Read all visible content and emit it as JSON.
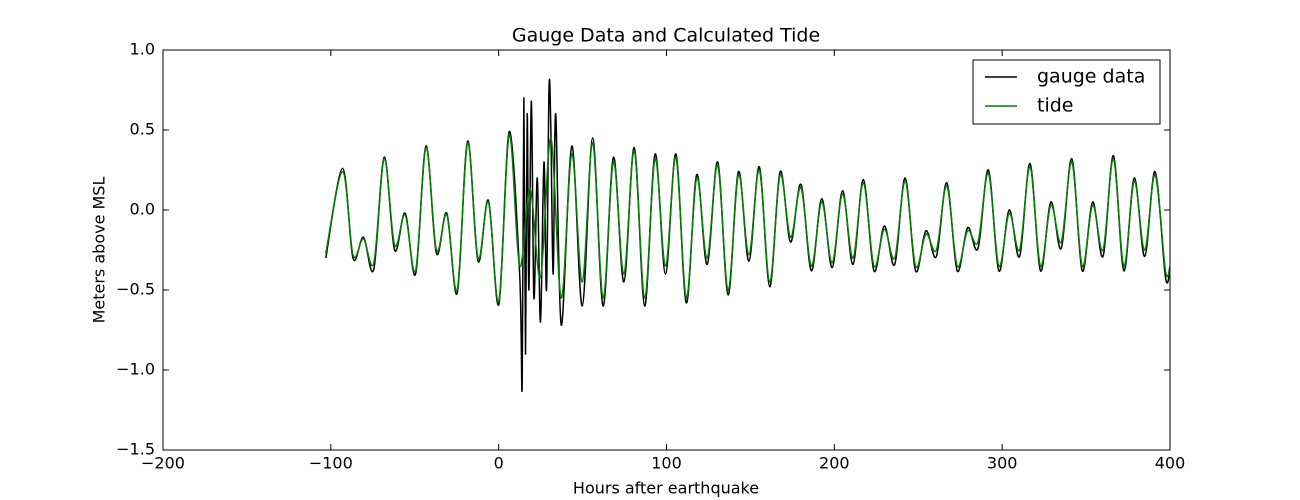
{
  "chart_data": {
    "type": "line",
    "title": "Gauge Data and Calculated Tide",
    "xlabel": "Hours after earthquake",
    "ylabel": "Meters above MSL",
    "xlim": [
      -200,
      400
    ],
    "xticks": [
      {
        "value": -200,
        "label": "−200"
      },
      {
        "value": -100,
        "label": "−100"
      },
      0,
      100,
      200,
      300,
      400
    ],
    "ylim": [
      -1.5,
      1.0
    ],
    "yticks": [
      {
        "value": -1.5,
        "label": "−1.5"
      },
      {
        "value": -1.0,
        "label": "−1.0"
      },
      {
        "value": -0.5,
        "label": "−0.5"
      },
      {
        "value": 0,
        "label": "0.0"
      },
      {
        "value": 0.5,
        "label": "0.5"
      },
      {
        "value": 1.0,
        "label": "1.0"
      }
    ],
    "legend": "upper right",
    "series": [
      {
        "name": "gauge data",
        "color": "#000000",
        "x": [
          -103,
          -93,
          -86.8,
          -80.6,
          -74.4,
          -68.2,
          -62,
          -55.7,
          -49.5,
          -43.3,
          -37.1,
          -30.9,
          -24.7,
          -18.5,
          -12.3,
          -6.1,
          0.1,
          6.3,
          12.5,
          14,
          15,
          16,
          17,
          18,
          19.5,
          21,
          23,
          24.9,
          27,
          28.5,
          30,
          31.1,
          32.5,
          34,
          37.3,
          43.6,
          49.8,
          56,
          62.2,
          68.4,
          74.6,
          80.8,
          87,
          93.2,
          99.4,
          105.6,
          111.8,
          118,
          124.2,
          130.5,
          136.7,
          142.9,
          149.1,
          155.3,
          161.5,
          167.7,
          173.9,
          180.1,
          186.3,
          192.5,
          198.7,
          204.9,
          211.1,
          217.3,
          223.6,
          229.8,
          236,
          242.2,
          248.4,
          254.6,
          260.8,
          267,
          273.2,
          279.4,
          285.6,
          291.8,
          298,
          304.2,
          310.4,
          316.6,
          322.8,
          329,
          335.2,
          341.5,
          347.7,
          353.9,
          360.1,
          366.3,
          372.5,
          378.7,
          384.9,
          391.1,
          397.3,
          400
        ],
        "values": [
          -0.3,
          0.26,
          -0.3,
          -0.17,
          -0.37,
          0.33,
          -0.25,
          -0.02,
          -0.4,
          0.4,
          -0.27,
          -0.02,
          -0.52,
          0.43,
          -0.32,
          0.06,
          -0.59,
          0.49,
          -0.4,
          -1.1,
          0.7,
          -0.9,
          0.6,
          -0.5,
          0.68,
          -0.55,
          0.2,
          -0.7,
          0.3,
          -0.5,
          0.76,
          0.5,
          -0.4,
          0.6,
          -0.72,
          0.4,
          -0.6,
          0.45,
          -0.6,
          0.33,
          -0.45,
          0.39,
          -0.6,
          0.35,
          -0.4,
          0.35,
          -0.58,
          0.22,
          -0.34,
          0.3,
          -0.53,
          0.24,
          -0.32,
          0.27,
          -0.48,
          0.24,
          -0.2,
          0.16,
          -0.38,
          0.07,
          -0.36,
          0.12,
          -0.34,
          0.19,
          -0.38,
          -0.1,
          -0.34,
          0.2,
          -0.38,
          -0.13,
          -0.29,
          0.17,
          -0.38,
          -0.11,
          -0.24,
          0.25,
          -0.38,
          0.0,
          -0.29,
          0.29,
          -0.38,
          0.05,
          -0.24,
          0.32,
          -0.38,
          0.05,
          -0.29,
          0.34,
          -0.38,
          0.2,
          -0.29,
          0.24,
          -0.42,
          -0.37
        ]
      },
      {
        "name": "tide",
        "color": "#008000",
        "x": [
          -103,
          -93,
          -86.8,
          -80.6,
          -74.4,
          -68.2,
          -62,
          -55.7,
          -49.5,
          -43.3,
          -37.1,
          -30.9,
          -24.7,
          -18.5,
          -12.3,
          -6.1,
          0.1,
          6.3,
          12.5,
          18.7,
          24.9,
          31.1,
          37.3,
          43.6,
          49.8,
          56,
          62.2,
          68.4,
          74.6,
          80.8,
          87,
          93.2,
          99.4,
          105.6,
          111.8,
          118,
          124.2,
          130.5,
          136.7,
          142.9,
          149.1,
          155.3,
          161.5,
          167.7,
          173.9,
          180.1,
          186.3,
          192.5,
          198.7,
          204.9,
          211.1,
          217.3,
          223.6,
          229.8,
          236,
          242.2,
          248.4,
          254.6,
          260.8,
          267,
          273.2,
          279.4,
          285.6,
          291.8,
          298,
          304.2,
          310.4,
          316.6,
          322.8,
          329,
          335.2,
          341.5,
          347.7,
          353.9,
          360.1,
          366.3,
          372.5,
          378.7,
          384.9,
          391.1,
          397.3,
          400
        ],
        "values": [
          -0.27,
          0.24,
          -0.28,
          -0.18,
          -0.33,
          0.32,
          -0.22,
          -0.03,
          -0.38,
          0.39,
          -0.25,
          -0.03,
          -0.5,
          0.42,
          -0.3,
          0.05,
          -0.57,
          0.47,
          -0.35,
          0.13,
          -0.42,
          0.45,
          -0.55,
          0.35,
          -0.45,
          0.42,
          -0.55,
          0.3,
          -0.4,
          0.37,
          -0.55,
          0.32,
          -0.35,
          0.33,
          -0.55,
          0.2,
          -0.3,
          0.28,
          -0.5,
          0.22,
          -0.28,
          0.25,
          -0.45,
          0.22,
          -0.17,
          0.14,
          -0.35,
          0.05,
          -0.33,
          0.1,
          -0.3,
          0.17,
          -0.35,
          -0.12,
          -0.3,
          0.18,
          -0.35,
          -0.15,
          -0.25,
          0.15,
          -0.35,
          -0.13,
          -0.2,
          0.23,
          -0.35,
          -0.02,
          -0.25,
          0.27,
          -0.35,
          0.03,
          -0.2,
          0.3,
          -0.35,
          0.03,
          -0.25,
          0.32,
          -0.35,
          0.18,
          -0.25,
          0.22,
          -0.38,
          -0.35
        ]
      }
    ]
  }
}
